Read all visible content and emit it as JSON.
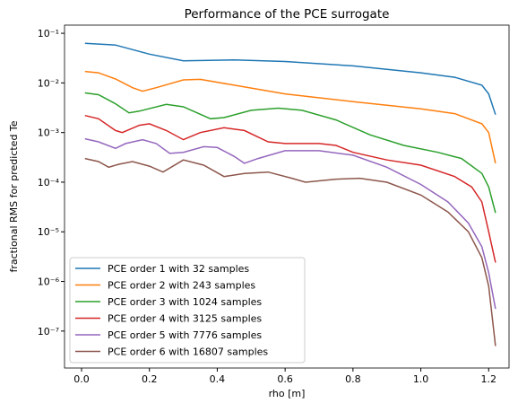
{
  "chart_data": {
    "type": "line",
    "title": "Performance of the PCE surrogate",
    "xlabel": "rho [m]",
    "ylabel": "fractional RMS for predicted Te",
    "yscale": "log",
    "legend": "lower left",
    "xlim": [
      -0.0502,
      1.26
    ],
    "xticks": [
      {
        "value": 0,
        "label": "0.0"
      },
      0.2,
      0.4,
      0.6,
      0.8,
      {
        "value": 1,
        "label": "1.0"
      },
      1.2
    ],
    "ylim": [
      1.8e-08,
      0.146
    ],
    "yticks": [
      {
        "value": 1e-07,
        "label": "10⁻⁷"
      },
      {
        "value": 1e-06,
        "label": "10⁻⁶"
      },
      {
        "value": 1e-05,
        "label": "10⁻⁵"
      },
      {
        "value": 0.0001,
        "label": "10⁻⁴"
      },
      {
        "value": 0.001,
        "label": "10⁻³"
      },
      {
        "value": 0.01,
        "label": "10⁻²"
      },
      {
        "value": 0.1,
        "label": "10⁻¹"
      }
    ],
    "series": [
      {
        "name": "PCE order 1 with 32 samples",
        "color": "#1f77b4",
        "x": [
          0.01,
          0.1,
          0.2,
          0.3,
          0.45,
          0.6,
          0.8,
          1.0,
          1.1,
          1.18,
          1.2,
          1.22
        ],
        "values": [
          0.063,
          0.058,
          0.038,
          0.028,
          0.029,
          0.027,
          0.022,
          0.016,
          0.013,
          0.009,
          0.006,
          0.0023
        ]
      },
      {
        "name": "PCE order 2 with 243 samples",
        "color": "#ff7f0e",
        "x": [
          0.01,
          0.05,
          0.1,
          0.15,
          0.18,
          0.22,
          0.3,
          0.35,
          0.45,
          0.6,
          0.8,
          1.0,
          1.1,
          1.18,
          1.2,
          1.22
        ],
        "values": [
          0.017,
          0.016,
          0.012,
          0.008,
          0.0068,
          0.008,
          0.0115,
          0.0118,
          0.009,
          0.006,
          0.0042,
          0.003,
          0.0024,
          0.0015,
          0.001,
          0.00024
        ]
      },
      {
        "name": "PCE order 3 with 1024 samples",
        "color": "#2ca02c",
        "x": [
          0.01,
          0.05,
          0.1,
          0.14,
          0.17,
          0.25,
          0.3,
          0.38,
          0.42,
          0.5,
          0.58,
          0.65,
          0.75,
          0.85,
          0.95,
          1.05,
          1.12,
          1.18,
          1.2,
          1.22
        ],
        "values": [
          0.0063,
          0.0058,
          0.0038,
          0.0025,
          0.0027,
          0.0037,
          0.0033,
          0.0019,
          0.002,
          0.0028,
          0.0031,
          0.0028,
          0.0018,
          0.0009,
          0.00055,
          0.0004,
          0.0003,
          0.00015,
          8e-05,
          2.4e-05
        ]
      },
      {
        "name": "PCE order 4 with 3125 samples",
        "color": "#d62728",
        "x": [
          0.01,
          0.05,
          0.1,
          0.12,
          0.17,
          0.2,
          0.25,
          0.3,
          0.35,
          0.42,
          0.48,
          0.55,
          0.6,
          0.7,
          0.75,
          0.8,
          0.9,
          1.0,
          1.1,
          1.15,
          1.18,
          1.2,
          1.22
        ],
        "values": [
          0.0022,
          0.0019,
          0.0011,
          0.001,
          0.0014,
          0.0015,
          0.0011,
          0.00072,
          0.001,
          0.00125,
          0.0011,
          0.00065,
          0.0006,
          0.0006,
          0.00055,
          0.0004,
          0.00028,
          0.00022,
          0.00013,
          8e-05,
          4e-05,
          1e-05,
          2.4e-06
        ]
      },
      {
        "name": "PCE order 5 with 7776 samples",
        "color": "#9467bd",
        "x": [
          0.01,
          0.05,
          0.1,
          0.13,
          0.18,
          0.22,
          0.26,
          0.3,
          0.36,
          0.4,
          0.45,
          0.48,
          0.52,
          0.6,
          0.7,
          0.8,
          0.9,
          1.0,
          1.08,
          1.14,
          1.18,
          1.2,
          1.22
        ],
        "values": [
          0.00075,
          0.00065,
          0.00048,
          0.0006,
          0.00072,
          0.0006,
          0.00038,
          0.0004,
          0.00052,
          0.0005,
          0.00033,
          0.00024,
          0.0003,
          0.00043,
          0.00043,
          0.00035,
          0.0002,
          9e-05,
          4e-05,
          1.5e-05,
          5e-06,
          1.5e-06,
          2.8e-07
        ]
      },
      {
        "name": "PCE order 6 with 16807 samples",
        "color": "#8c564b",
        "x": [
          0.01,
          0.05,
          0.08,
          0.11,
          0.15,
          0.2,
          0.24,
          0.3,
          0.36,
          0.42,
          0.48,
          0.55,
          0.62,
          0.66,
          0.75,
          0.82,
          0.9,
          1.0,
          1.08,
          1.14,
          1.18,
          1.2,
          1.22
        ],
        "values": [
          0.0003,
          0.00026,
          0.0002,
          0.00023,
          0.00026,
          0.00021,
          0.00016,
          0.00028,
          0.00022,
          0.00013,
          0.00015,
          0.00016,
          0.00012,
          0.0001,
          0.000115,
          0.00012,
          0.0001,
          5.5e-05,
          2.5e-05,
          1e-05,
          3e-06,
          8e-07,
          5e-08
        ]
      }
    ]
  }
}
